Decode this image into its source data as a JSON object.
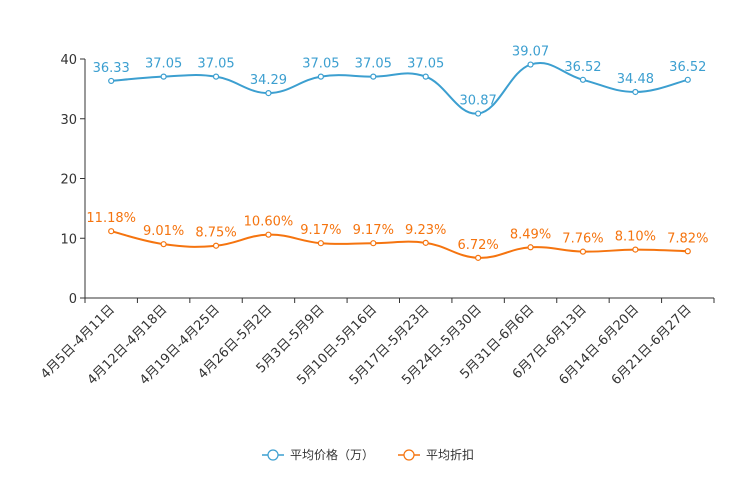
{
  "chart_data": {
    "type": "line",
    "title": "",
    "xlabel": "",
    "ylabel": "",
    "ylim": [
      0,
      40
    ],
    "yticks": [
      0,
      10,
      20,
      30,
      40
    ],
    "categories": [
      "4月5日-4月11日",
      "4月12日-4月18日",
      "4月19日-4月25日",
      "4月26日-5月2日",
      "5月3日-5月9日",
      "5月10日-5月16日",
      "5月17日-5月23日",
      "5月24日-5月30日",
      "5月31日-6月6日",
      "6月7日-6月13日",
      "6月14日-6月20日",
      "6月21日-6月27日"
    ],
    "series": [
      {
        "name": "平均价格（万）",
        "color": "#3c9fd0",
        "values": [
          36.33,
          37.05,
          37.05,
          34.29,
          37.05,
          37.05,
          37.05,
          30.87,
          39.07,
          36.52,
          34.48,
          36.52
        ],
        "labels": [
          "36.33",
          "37.05",
          "37.05",
          "34.29",
          "37.05",
          "37.05",
          "37.05",
          "30.87",
          "39.07",
          "36.52",
          "34.48",
          "36.52"
        ]
      },
      {
        "name": "平均折扣",
        "color": "#f5740f",
        "values": [
          11.18,
          9.01,
          8.75,
          10.6,
          9.17,
          9.17,
          9.23,
          6.72,
          8.49,
          7.76,
          8.1,
          7.82
        ],
        "labels": [
          "11.18%",
          "9.01%",
          "8.75%",
          "10.60%",
          "9.17%",
          "9.17%",
          "9.23%",
          "6.72%",
          "8.49%",
          "7.76%",
          "8.10%",
          "7.82%"
        ]
      }
    ],
    "legend_position": "bottom-center",
    "grid": false
  }
}
